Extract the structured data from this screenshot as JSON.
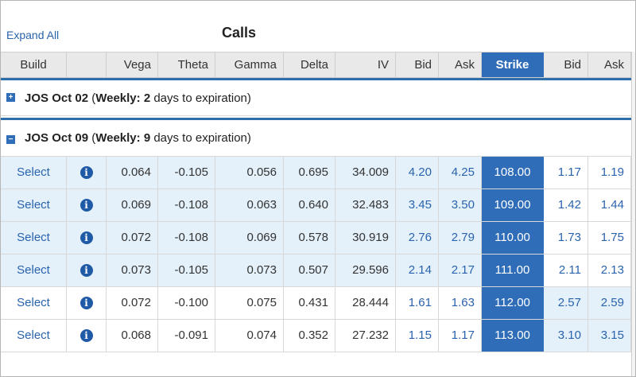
{
  "toolbar": {
    "expand_all": "Expand All",
    "title": "Calls"
  },
  "columns": {
    "build": "Build",
    "blank": "",
    "vega": "Vega",
    "theta": "Theta",
    "gamma": "Gamma",
    "delta": "Delta",
    "iv": "IV",
    "bid": "Bid",
    "ask": "Ask",
    "strike": "Strike",
    "put_bid": "Bid",
    "put_ask": "Ask"
  },
  "groups": [
    {
      "toggle": "+",
      "symbol": "JOS",
      "date": "Oct 02",
      "open_paren": "(",
      "weekly_label": "Weekly:",
      "days": "2",
      "suffix": "days to expiration)"
    },
    {
      "toggle": "−",
      "symbol": "JOS",
      "date": "Oct 09",
      "open_paren": "(",
      "weekly_label": "Weekly:",
      "days": "9",
      "suffix": "days to expiration)"
    }
  ],
  "rows": [
    {
      "select": "Select",
      "info": "i",
      "vega": "0.064",
      "theta": "-0.105",
      "gamma": "0.056",
      "delta": "0.695",
      "iv": "34.009",
      "bid": "4.20",
      "ask": "4.25",
      "strike": "108.00",
      "put_bid": "1.17",
      "put_ask": "1.19"
    },
    {
      "select": "Select",
      "info": "i",
      "vega": "0.069",
      "theta": "-0.108",
      "gamma": "0.063",
      "delta": "0.640",
      "iv": "32.483",
      "bid": "3.45",
      "ask": "3.50",
      "strike": "109.00",
      "put_bid": "1.42",
      "put_ask": "1.44"
    },
    {
      "select": "Select",
      "info": "i",
      "vega": "0.072",
      "theta": "-0.108",
      "gamma": "0.069",
      "delta": "0.578",
      "iv": "30.919",
      "bid": "2.76",
      "ask": "2.79",
      "strike": "110.00",
      "put_bid": "1.73",
      "put_ask": "1.75"
    },
    {
      "select": "Select",
      "info": "i",
      "vega": "0.073",
      "theta": "-0.105",
      "gamma": "0.073",
      "delta": "0.507",
      "iv": "29.596",
      "bid": "2.14",
      "ask": "2.17",
      "strike": "111.00",
      "put_bid": "2.11",
      "put_ask": "2.13"
    },
    {
      "select": "Select",
      "info": "i",
      "vega": "0.072",
      "theta": "-0.100",
      "gamma": "0.075",
      "delta": "0.431",
      "iv": "28.444",
      "bid": "1.61",
      "ask": "1.63",
      "strike": "112.00",
      "put_bid": "2.57",
      "put_ask": "2.59"
    },
    {
      "select": "Select",
      "info": "i",
      "vega": "0.068",
      "theta": "-0.091",
      "gamma": "0.074",
      "delta": "0.352",
      "iv": "27.232",
      "bid": "1.15",
      "ask": "1.17",
      "strike": "113.00",
      "put_bid": "3.10",
      "put_ask": "3.15"
    }
  ],
  "colors": {
    "accent": "#2f6db9",
    "in_the_money": "#e4f1fa",
    "link": "#2a63ad"
  }
}
